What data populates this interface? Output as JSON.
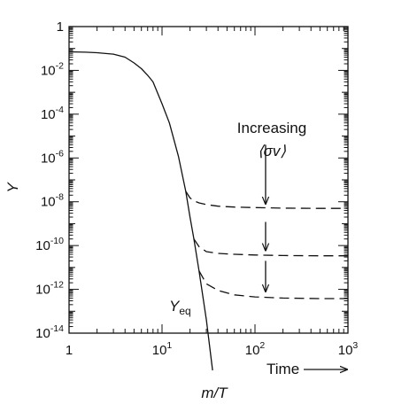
{
  "chart_data": {
    "type": "line",
    "title": "",
    "xlabel": "m/T",
    "ylabel": "Y",
    "xscale": "log",
    "yscale": "log",
    "xlim": [
      1,
      1000
    ],
    "ylim": [
      1e-14,
      1
    ],
    "x_ticks": [
      {
        "base": "1",
        "exp": ""
      },
      {
        "base": "10",
        "exp": "1"
      },
      {
        "base": "10",
        "exp": "2"
      },
      {
        "base": "10",
        "exp": "3"
      }
    ],
    "y_ticks": [
      {
        "base": "1",
        "exp": ""
      },
      {
        "base": "10",
        "exp": "-2"
      },
      {
        "base": "10",
        "exp": "-4"
      },
      {
        "base": "10",
        "exp": "-6"
      },
      {
        "base": "10",
        "exp": "-8"
      },
      {
        "base": "10",
        "exp": "-10"
      },
      {
        "base": "10",
        "exp": "-12"
      },
      {
        "base": "10",
        "exp": "-14"
      }
    ],
    "series": [
      {
        "style": "solid",
        "x": [
          1,
          1.5,
          2,
          3,
          4,
          5,
          6,
          7,
          8,
          10,
          12,
          15,
          18,
          20,
          22,
          25,
          30,
          35
        ],
        "y": [
          0.07,
          0.068,
          0.064,
          0.055,
          0.04,
          0.022,
          0.012,
          0.006,
          0.003,
          0.0003,
          4e-05,
          1.2e-06,
          3e-08,
          2e-09,
          2e-10,
          7e-12,
          4e-14,
          2e-16
        ]
      },
      {
        "style": "dashed",
        "x": [
          18,
          20,
          22,
          25,
          30,
          40,
          60,
          100,
          200,
          500,
          1000
        ],
        "y": [
          3e-08,
          1.5e-08,
          1.1e-08,
          8.9e-09,
          7.4e-09,
          6.3e-09,
          5.7e-09,
          5.4e-09,
          5.1e-09,
          5e-09,
          5e-09
        ]
      },
      {
        "style": "dashed",
        "x": [
          22,
          25,
          30,
          40,
          60,
          100,
          200,
          500,
          1000
        ],
        "y": [
          2e-10,
          8.9e-11,
          5.3e-11,
          4.4e-11,
          4e-11,
          3.7e-11,
          3.5e-11,
          3.4e-11,
          3.4e-11
        ]
      },
      {
        "style": "dashed",
        "x": [
          25,
          30,
          40,
          60,
          100,
          200,
          500,
          1000
        ],
        "y": [
          7e-12,
          1.8e-12,
          8.9e-13,
          5.6e-13,
          4.5e-13,
          4e-13,
          3.8e-13,
          3.8e-13
        ]
      }
    ],
    "annotations": {
      "increasing": "Increasing",
      "sigma_v": "⟨σv⟩",
      "y_eq_main": "Y",
      "y_eq_sub": "eq",
      "time": "Time"
    },
    "arrows": [
      {
        "x": 130,
        "y_from": 4e-06,
        "y_to": 8e-09
      },
      {
        "x": 130,
        "y_from": 1.2e-09,
        "y_to": 6e-11
      },
      {
        "x": 130,
        "y_from": 2e-11,
        "y_to": 8e-13
      }
    ],
    "grid": false,
    "legend": "none"
  }
}
